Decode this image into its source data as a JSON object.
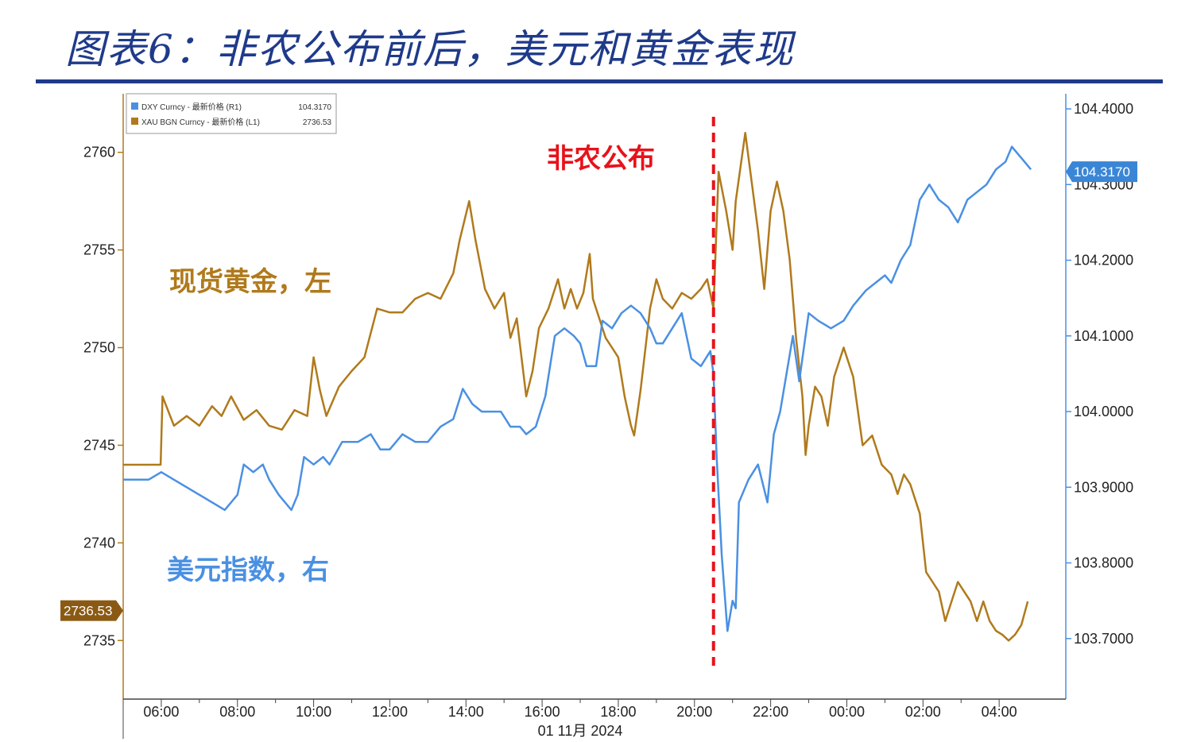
{
  "page": {
    "title": "图表6：非农公布前后，美元和黄金表现"
  },
  "chart_data": {
    "type": "line",
    "date_label": "01 11月 2024",
    "x_tick_labels": [
      "06:00",
      "08:00",
      "10:00",
      "12:00",
      "14:00",
      "16:00",
      "18:00",
      "20:00",
      "22:00",
      "00:00",
      "02:00",
      "04:00"
    ],
    "grid": false,
    "legend_position": "top-left",
    "left_axis": {
      "ylim": [
        2732,
        2763
      ],
      "ticks": [
        2735,
        2740,
        2745,
        2750,
        2755,
        2760
      ]
    },
    "right_axis": {
      "ylim": [
        103.62,
        104.42
      ],
      "ticks": [
        "103.7000",
        "103.8000",
        "103.9000",
        "104.0000",
        "104.1000",
        "104.2000",
        "104.3000",
        "104.4000"
      ]
    },
    "event": {
      "label": "非农公布",
      "x": "20:30"
    },
    "annotations": {
      "gold": "现货黄金，左",
      "dxy": "美元指数，右"
    },
    "series": [
      {
        "name": "XAU BGN Curncy - 最新价格 (L1)",
        "last_label": "2736.53",
        "color": "#b07a1c",
        "axis": "left",
        "points": [
          [
            "05:00",
            2744.0
          ],
          [
            "05:59",
            2744.0
          ],
          [
            "06:02",
            2747.5
          ],
          [
            "06:20",
            2746.0
          ],
          [
            "06:40",
            2746.5
          ],
          [
            "07:00",
            2746.0
          ],
          [
            "07:20",
            2747.0
          ],
          [
            "07:35",
            2746.5
          ],
          [
            "07:50",
            2747.5
          ],
          [
            "08:10",
            2746.3
          ],
          [
            "08:30",
            2746.8
          ],
          [
            "08:50",
            2746.0
          ],
          [
            "09:10",
            2745.8
          ],
          [
            "09:30",
            2746.8
          ],
          [
            "09:50",
            2746.5
          ],
          [
            "10:00",
            2749.5
          ],
          [
            "10:10",
            2747.8
          ],
          [
            "10:20",
            2746.5
          ],
          [
            "10:40",
            2748.0
          ],
          [
            "11:00",
            2748.8
          ],
          [
            "11:20",
            2749.5
          ],
          [
            "11:40",
            2752.0
          ],
          [
            "12:00",
            2751.8
          ],
          [
            "12:20",
            2751.8
          ],
          [
            "12:40",
            2752.5
          ],
          [
            "13:00",
            2752.8
          ],
          [
            "13:20",
            2752.5
          ],
          [
            "13:40",
            2753.8
          ],
          [
            "13:50",
            2755.5
          ],
          [
            "14:05",
            2757.5
          ],
          [
            "14:15",
            2755.5
          ],
          [
            "14:30",
            2753.0
          ],
          [
            "14:45",
            2752.0
          ],
          [
            "15:00",
            2752.8
          ],
          [
            "15:10",
            2750.5
          ],
          [
            "15:20",
            2751.5
          ],
          [
            "15:35",
            2747.5
          ],
          [
            "15:45",
            2748.8
          ],
          [
            "15:55",
            2751.0
          ],
          [
            "16:10",
            2752.0
          ],
          [
            "16:25",
            2753.5
          ],
          [
            "16:35",
            2752.0
          ],
          [
            "16:45",
            2753.0
          ],
          [
            "16:55",
            2752.0
          ],
          [
            "17:05",
            2752.8
          ],
          [
            "17:15",
            2754.8
          ],
          [
            "17:20",
            2752.5
          ],
          [
            "17:30",
            2751.5
          ],
          [
            "17:40",
            2750.5
          ],
          [
            "17:50",
            2750.0
          ],
          [
            "18:00",
            2749.5
          ],
          [
            "18:10",
            2747.5
          ],
          [
            "18:20",
            2746.0
          ],
          [
            "18:25",
            2745.5
          ],
          [
            "18:35",
            2747.8
          ],
          [
            "18:50",
            2752.0
          ],
          [
            "19:00",
            2753.5
          ],
          [
            "19:10",
            2752.5
          ],
          [
            "19:25",
            2752.0
          ],
          [
            "19:40",
            2752.8
          ],
          [
            "19:55",
            2752.5
          ],
          [
            "20:10",
            2753.0
          ],
          [
            "20:20",
            2753.5
          ],
          [
            "20:30",
            2752.0
          ],
          [
            "20:38",
            2759.0
          ],
          [
            "20:50",
            2757.0
          ],
          [
            "21:00",
            2755.0
          ],
          [
            "21:05",
            2757.5
          ],
          [
            "21:20",
            2761.0
          ],
          [
            "21:30",
            2758.5
          ],
          [
            "21:40",
            2756.0
          ],
          [
            "21:50",
            2753.0
          ],
          [
            "22:00",
            2757.0
          ],
          [
            "22:10",
            2758.5
          ],
          [
            "22:20",
            2757.0
          ],
          [
            "22:30",
            2754.5
          ],
          [
            "22:40",
            2750.5
          ],
          [
            "22:50",
            2747.5
          ],
          [
            "22:55",
            2744.5
          ],
          [
            "23:00",
            2746.0
          ],
          [
            "23:10",
            2748.0
          ],
          [
            "23:20",
            2747.5
          ],
          [
            "23:30",
            2746.0
          ],
          [
            "23:40",
            2748.5
          ],
          [
            "23:55",
            2750.0
          ],
          [
            "00:10",
            2748.5
          ],
          [
            "00:25",
            2745.0
          ],
          [
            "00:40",
            2745.5
          ],
          [
            "00:55",
            2744.0
          ],
          [
            "01:10",
            2743.5
          ],
          [
            "01:20",
            2742.5
          ],
          [
            "01:30",
            2743.5
          ],
          [
            "01:40",
            2743.0
          ],
          [
            "01:55",
            2741.5
          ],
          [
            "02:05",
            2738.5
          ],
          [
            "02:15",
            2738.0
          ],
          [
            "02:25",
            2737.5
          ],
          [
            "02:35",
            2736.0
          ],
          [
            "02:45",
            2737.0
          ],
          [
            "02:55",
            2738.0
          ],
          [
            "03:05",
            2737.5
          ],
          [
            "03:15",
            2737.0
          ],
          [
            "03:25",
            2736.0
          ],
          [
            "03:35",
            2737.0
          ],
          [
            "03:45",
            2736.0
          ],
          [
            "03:55",
            2735.5
          ],
          [
            "04:05",
            2735.3
          ],
          [
            "04:15",
            2735.0
          ],
          [
            "04:25",
            2735.3
          ],
          [
            "04:35",
            2735.8
          ],
          [
            "04:45",
            2737.0
          ]
        ]
      },
      {
        "name": "DXY Curncy - 最新价格 (R1)",
        "last_label": "104.3170",
        "color": "#4a90e2",
        "axis": "right",
        "points": [
          [
            "05:00",
            103.91
          ],
          [
            "05:40",
            103.91
          ],
          [
            "06:00",
            103.92
          ],
          [
            "07:00",
            103.89
          ],
          [
            "07:40",
            103.87
          ],
          [
            "08:00",
            103.89
          ],
          [
            "08:10",
            103.93
          ],
          [
            "08:25",
            103.92
          ],
          [
            "08:40",
            103.93
          ],
          [
            "08:50",
            103.91
          ],
          [
            "09:05",
            103.89
          ],
          [
            "09:15",
            103.88
          ],
          [
            "09:25",
            103.87
          ],
          [
            "09:35",
            103.89
          ],
          [
            "09:45",
            103.94
          ],
          [
            "10:00",
            103.93
          ],
          [
            "10:15",
            103.94
          ],
          [
            "10:25",
            103.93
          ],
          [
            "10:45",
            103.96
          ],
          [
            "11:10",
            103.96
          ],
          [
            "11:30",
            103.97
          ],
          [
            "11:45",
            103.95
          ],
          [
            "12:00",
            103.95
          ],
          [
            "12:20",
            103.97
          ],
          [
            "12:40",
            103.96
          ],
          [
            "13:00",
            103.96
          ],
          [
            "13:20",
            103.98
          ],
          [
            "13:40",
            103.99
          ],
          [
            "13:55",
            104.03
          ],
          [
            "14:10",
            104.01
          ],
          [
            "14:25",
            104.0
          ],
          [
            "14:40",
            104.0
          ],
          [
            "14:55",
            104.0
          ],
          [
            "15:10",
            103.98
          ],
          [
            "15:25",
            103.98
          ],
          [
            "15:35",
            103.97
          ],
          [
            "15:50",
            103.98
          ],
          [
            "16:05",
            104.02
          ],
          [
            "16:20",
            104.1
          ],
          [
            "16:35",
            104.11
          ],
          [
            "16:50",
            104.1
          ],
          [
            "17:00",
            104.09
          ],
          [
            "17:10",
            104.06
          ],
          [
            "17:25",
            104.06
          ],
          [
            "17:35",
            104.12
          ],
          [
            "17:50",
            104.11
          ],
          [
            "18:05",
            104.13
          ],
          [
            "18:20",
            104.14
          ],
          [
            "18:35",
            104.13
          ],
          [
            "18:50",
            104.11
          ],
          [
            "19:00",
            104.09
          ],
          [
            "19:10",
            104.09
          ],
          [
            "19:25",
            104.11
          ],
          [
            "19:40",
            104.13
          ],
          [
            "19:55",
            104.07
          ],
          [
            "20:10",
            104.06
          ],
          [
            "20:25",
            104.08
          ],
          [
            "20:30",
            104.05
          ],
          [
            "20:35",
            103.94
          ],
          [
            "20:43",
            103.81
          ],
          [
            "20:52",
            103.71
          ],
          [
            "21:00",
            103.75
          ],
          [
            "21:05",
            103.74
          ],
          [
            "21:10",
            103.88
          ],
          [
            "21:25",
            103.91
          ],
          [
            "21:40",
            103.93
          ],
          [
            "21:55",
            103.88
          ],
          [
            "22:05",
            103.97
          ],
          [
            "22:15",
            104.0
          ],
          [
            "22:25",
            104.05
          ],
          [
            "22:35",
            104.1
          ],
          [
            "22:45",
            104.04
          ],
          [
            "23:00",
            104.13
          ],
          [
            "23:15",
            104.12
          ],
          [
            "23:35",
            104.11
          ],
          [
            "23:55",
            104.12
          ],
          [
            "00:10",
            104.14
          ],
          [
            "00:30",
            104.16
          ],
          [
            "00:45",
            104.17
          ],
          [
            "01:00",
            104.18
          ],
          [
            "01:10",
            104.17
          ],
          [
            "01:25",
            104.2
          ],
          [
            "01:40",
            104.22
          ],
          [
            "01:55",
            104.28
          ],
          [
            "02:10",
            104.3
          ],
          [
            "02:25",
            104.28
          ],
          [
            "02:40",
            104.27
          ],
          [
            "02:55",
            104.25
          ],
          [
            "03:10",
            104.28
          ],
          [
            "03:25",
            104.29
          ],
          [
            "03:40",
            104.3
          ],
          [
            "03:55",
            104.32
          ],
          [
            "04:10",
            104.33
          ],
          [
            "04:20",
            104.35
          ],
          [
            "04:30",
            104.34
          ],
          [
            "04:40",
            104.33
          ],
          [
            "04:50",
            104.32
          ]
        ]
      }
    ]
  }
}
